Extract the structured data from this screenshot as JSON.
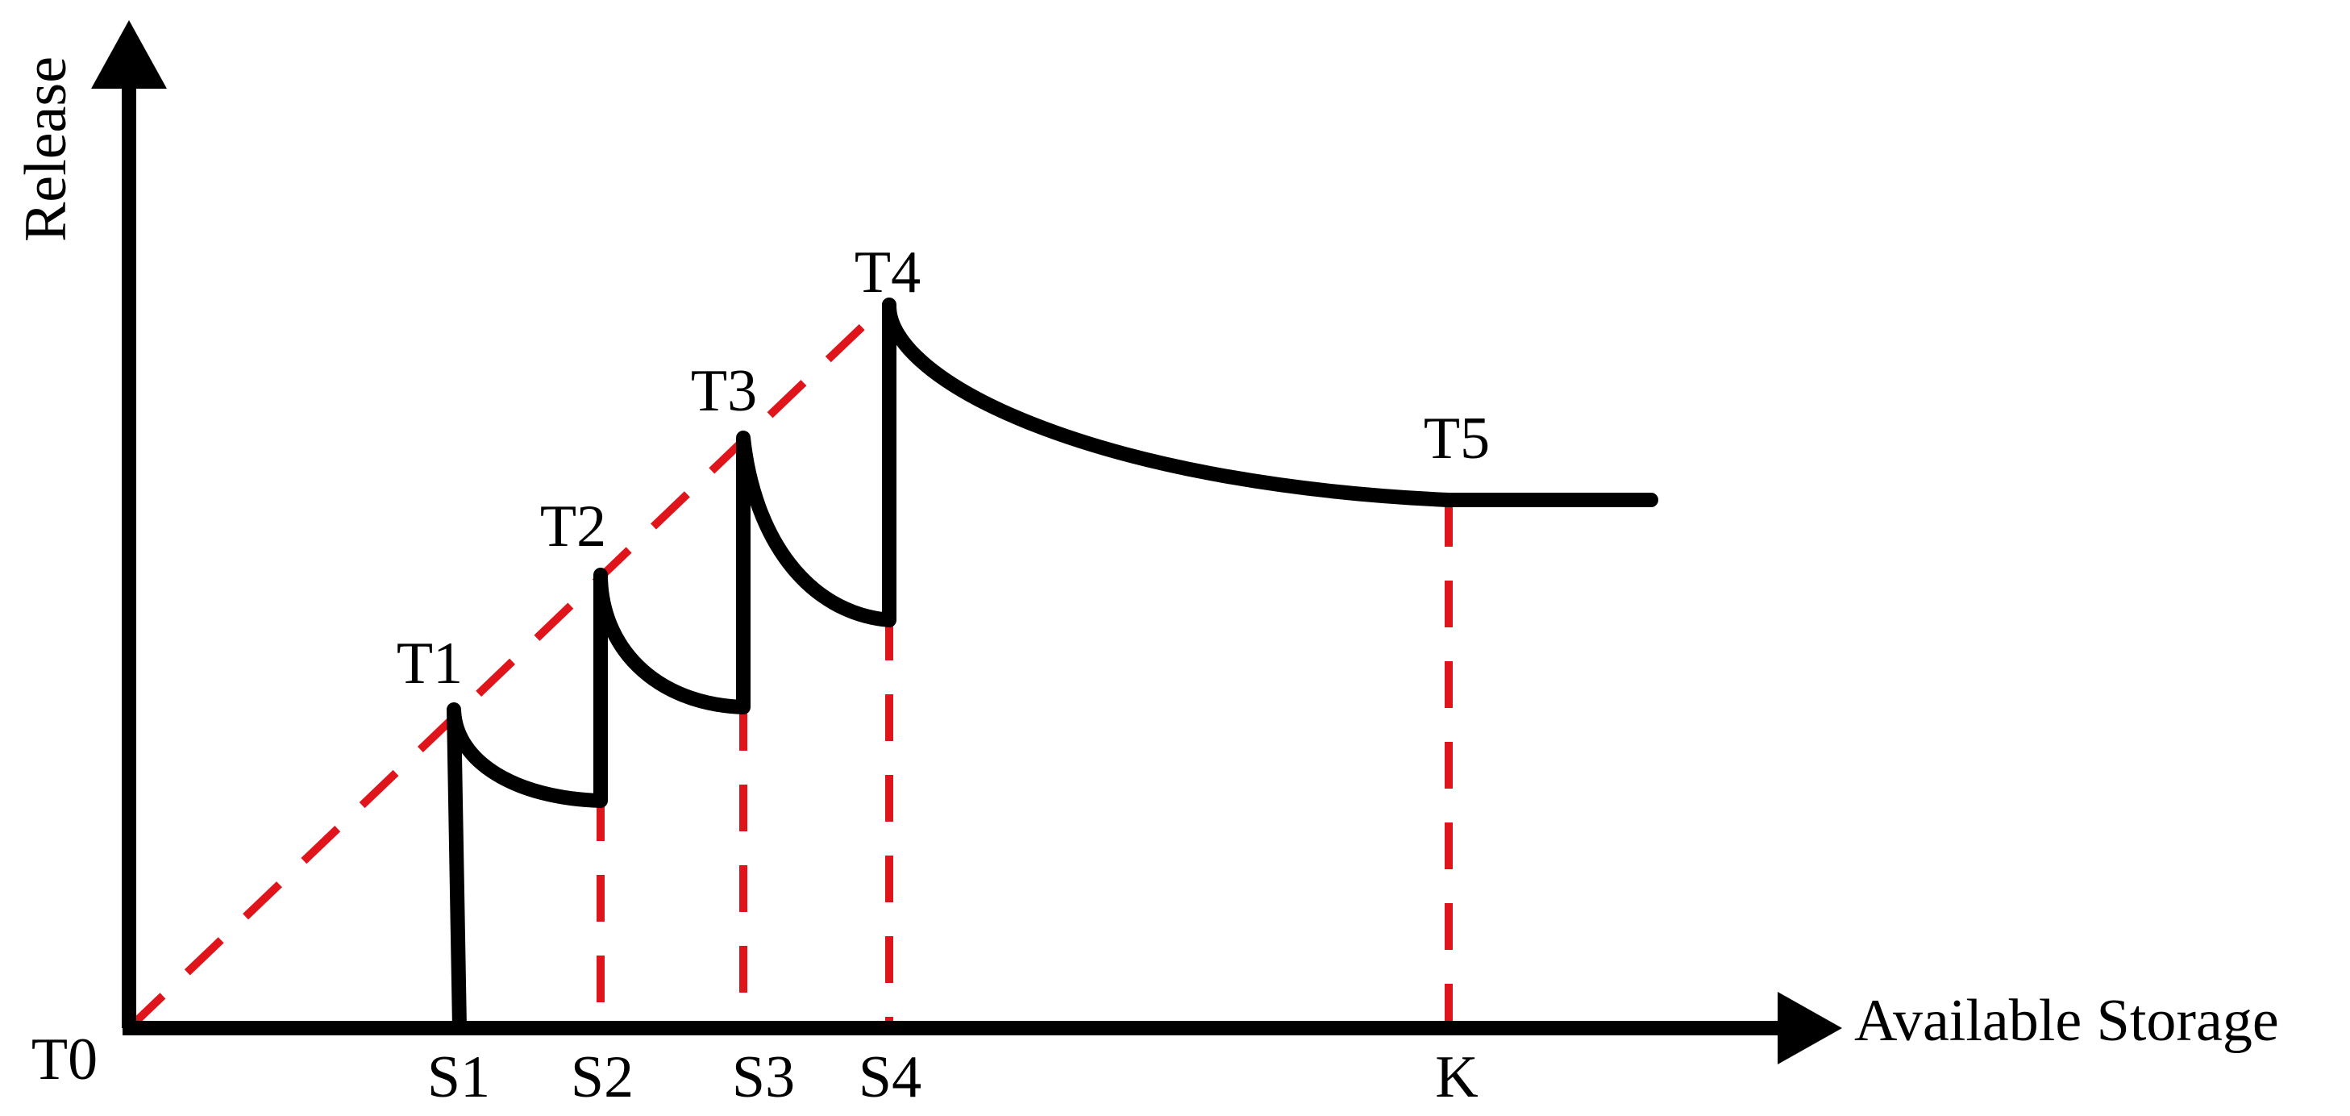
{
  "axes": {
    "y_label": "Release",
    "x_label": "Available Storage"
  },
  "origin_label": "T0",
  "x_ticks": [
    {
      "id": "s1",
      "label": "S1"
    },
    {
      "id": "s2",
      "label": "S2"
    },
    {
      "id": "s3",
      "label": "S3"
    },
    {
      "id": "s4",
      "label": "S4"
    },
    {
      "id": "k",
      "label": "K"
    }
  ],
  "points": [
    {
      "id": "t1",
      "label": "T1"
    },
    {
      "id": "t2",
      "label": "T2"
    },
    {
      "id": "t3",
      "label": "T3"
    },
    {
      "id": "t4",
      "label": "T4"
    },
    {
      "id": "t5",
      "label": "T5"
    }
  ],
  "colors": {
    "axis": "#000000",
    "release_curve": "#000000",
    "guide_lines": "#e0141b",
    "background": "#ffffff"
  }
}
